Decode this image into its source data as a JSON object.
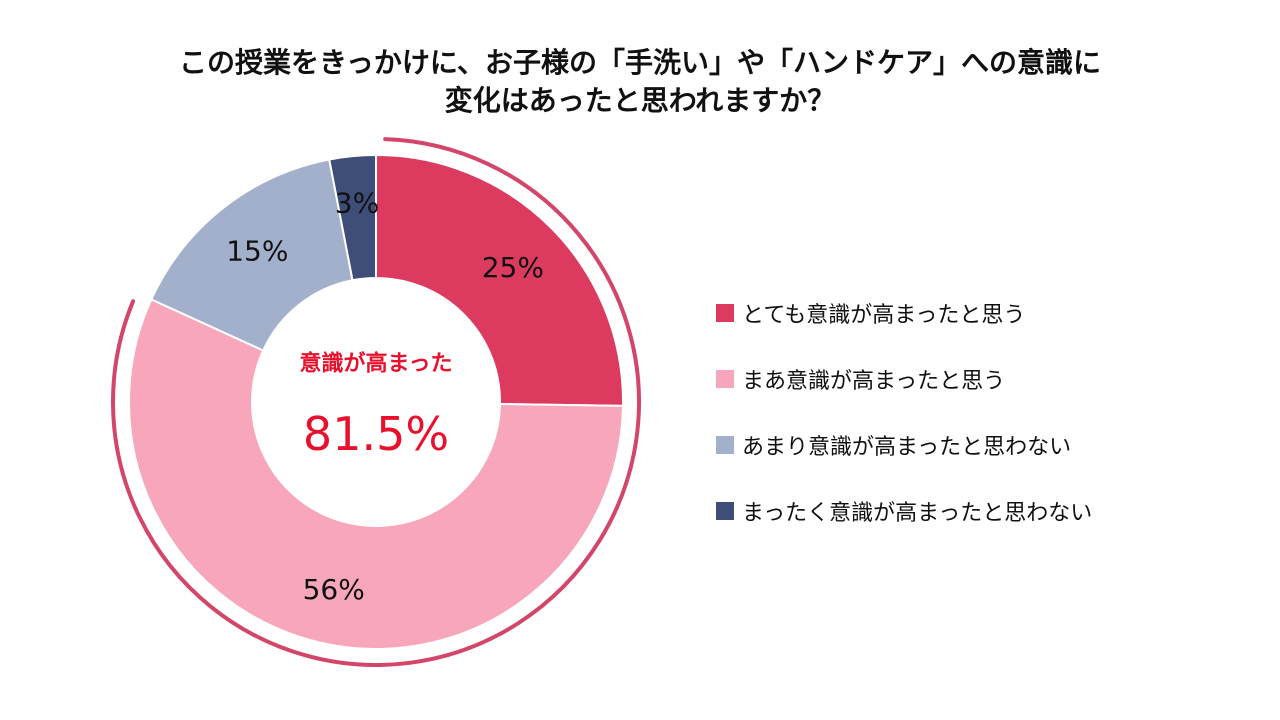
{
  "chart_data": {
    "type": "pie",
    "title_lines": [
      "この授業をきっかけに、お子様の「手洗い」や「ハンドケア」への意識に",
      "変化はあったと思われますか？"
    ],
    "categories": [
      "とても意識が高まったと思う",
      "まあ意識が高まったと思う",
      "あまり意識が高まったと思わない",
      "まったく意識が高まったと思わない"
    ],
    "values": [
      25,
      56,
      15,
      3
    ],
    "value_labels": [
      "25%",
      "56%",
      "15%",
      "3%"
    ],
    "colors": [
      "#dc3a5e",
      "#f7a6bb",
      "#a3b0cc",
      "#3f4e78"
    ],
    "center_label": "意識が高まった",
    "center_value": "81.5%",
    "highlight_color": "#e8112d",
    "highlight_ring_color": "#d3466a",
    "legend_position": "right"
  }
}
